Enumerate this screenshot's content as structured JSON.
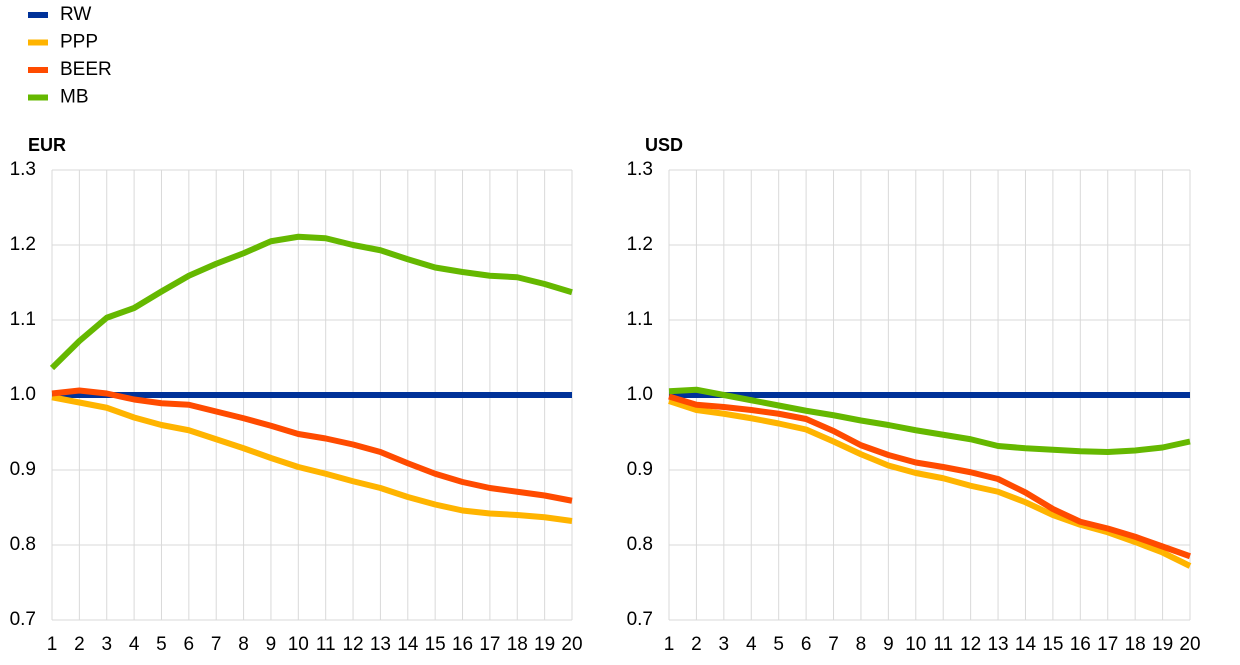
{
  "chart_data": [
    {
      "type": "line",
      "title": "EUR",
      "x": [
        1,
        2,
        3,
        4,
        5,
        6,
        7,
        8,
        9,
        10,
        11,
        12,
        13,
        14,
        15,
        16,
        17,
        18,
        19,
        20
      ],
      "xlim": [
        1,
        20
      ],
      "ylim": [
        0.7,
        1.3
      ],
      "yticks": [
        0.7,
        0.8,
        0.9,
        {
          "value": 1,
          "label": "1.0"
        },
        1.1,
        1.2,
        1.3
      ],
      "grid": true,
      "series": [
        {
          "name": "RW",
          "color": "#003299",
          "values": [
            1,
            1,
            1,
            1,
            1,
            1,
            1,
            1,
            1,
            1,
            1,
            1,
            1,
            1,
            1,
            1,
            1,
            1,
            1,
            1
          ]
        },
        {
          "name": "PPP",
          "color": "#ffb400",
          "values": [
            0.997,
            0.99,
            0.983,
            0.97,
            0.96,
            0.953,
            0.941,
            0.929,
            0.916,
            0.904,
            0.895,
            0.885,
            0.876,
            0.864,
            0.854,
            0.846,
            0.842,
            0.84,
            0.837,
            0.832
          ]
        },
        {
          "name": "BEER",
          "color": "#ff4b00",
          "values": [
            1.002,
            1.006,
            1.002,
            0.994,
            0.989,
            0.987,
            0.978,
            0.969,
            0.959,
            0.948,
            0.942,
            0.934,
            0.924,
            0.909,
            0.895,
            0.884,
            0.876,
            0.871,
            0.866,
            0.859
          ]
        },
        {
          "name": "MB",
          "color": "#65b800",
          "values": [
            1.036,
            1.072,
            1.103,
            1.116,
            1.138,
            1.159,
            1.175,
            1.189,
            1.205,
            1.211,
            1.209,
            1.2,
            1.193,
            1.181,
            1.17,
            1.164,
            1.159,
            1.157,
            1.148,
            1.137
          ]
        }
      ]
    },
    {
      "type": "line",
      "title": "USD",
      "x": [
        1,
        2,
        3,
        4,
        5,
        6,
        7,
        8,
        9,
        10,
        11,
        12,
        13,
        14,
        15,
        16,
        17,
        18,
        19,
        20
      ],
      "xlim": [
        1,
        20
      ],
      "ylim": [
        0.7,
        1.3
      ],
      "yticks": [
        0.7,
        0.8,
        0.9,
        {
          "value": 1,
          "label": "1.0"
        },
        1.1,
        1.2,
        1.3
      ],
      "grid": true,
      "series": [
        {
          "name": "RW",
          "color": "#003299",
          "values": [
            1,
            1,
            1,
            1,
            1,
            1,
            1,
            1,
            1,
            1,
            1,
            1,
            1,
            1,
            1,
            1,
            1,
            1,
            1,
            1
          ]
        },
        {
          "name": "PPP",
          "color": "#ffb400",
          "values": [
            0.992,
            0.98,
            0.975,
            0.969,
            0.962,
            0.954,
            0.938,
            0.921,
            0.906,
            0.896,
            0.889,
            0.879,
            0.871,
            0.857,
            0.84,
            0.827,
            0.817,
            0.804,
            0.79,
            0.772
          ]
        },
        {
          "name": "BEER",
          "color": "#ff4b00",
          "values": [
            0.998,
            0.987,
            0.984,
            0.98,
            0.975,
            0.968,
            0.952,
            0.933,
            0.92,
            0.91,
            0.904,
            0.897,
            0.888,
            0.87,
            0.848,
            0.831,
            0.822,
            0.811,
            0.798,
            0.785
          ]
        },
        {
          "name": "MB",
          "color": "#65b800",
          "values": [
            1.005,
            1.007,
            1,
            0.993,
            0.986,
            0.979,
            0.973,
            0.966,
            0.96,
            0.953,
            0.947,
            0.941,
            0.932,
            0.929,
            0.927,
            0.925,
            0.924,
            0.926,
            0.93,
            0.938
          ]
        }
      ]
    }
  ]
}
